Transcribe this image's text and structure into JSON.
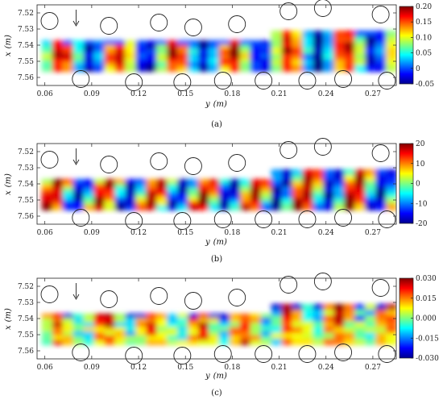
{
  "chart_data": [
    {
      "type": "heatmap",
      "panel_label": "(a)",
      "xlabel": "y",
      "xlabel_unit": "(m)",
      "ylabel": "x",
      "ylabel_unit": "(m)",
      "xlim": [
        0.055,
        0.285
      ],
      "ylim": [
        7.515,
        7.565
      ],
      "x_ticks": [
        "0.06",
        "0.09",
        "0.12",
        "0.15",
        "0.18",
        "0.21",
        "0.24",
        "0.27"
      ],
      "x_tick_values": [
        0.06,
        0.09,
        0.12,
        0.15,
        0.18,
        0.21,
        0.24,
        0.27
      ],
      "y_ticks": [
        "7.52",
        "7.53",
        "7.54",
        "7.55",
        "7.56"
      ],
      "y_tick_values": [
        7.52,
        7.53,
        7.54,
        7.55,
        7.56
      ],
      "colorbar_ticks": [
        "0.20",
        "0.15",
        "0.10",
        "0.05",
        "0",
        "-0.05"
      ],
      "colorbar_values": [
        0.2,
        0.15,
        0.1,
        0.05,
        0,
        -0.05
      ],
      "colorscale": "jet",
      "flow_arrow_y": 0.08
    },
    {
      "type": "heatmap",
      "panel_label": "(b)",
      "xlabel": "y",
      "xlabel_unit": "(m)",
      "ylabel": "x",
      "ylabel_unit": "(m)",
      "xlim": [
        0.055,
        0.285
      ],
      "ylim": [
        7.515,
        7.565
      ],
      "x_ticks": [
        "0.06",
        "0.09",
        "0.12",
        "0.15",
        "0.18",
        "0.21",
        "0.24",
        "0.27"
      ],
      "x_tick_values": [
        0.06,
        0.09,
        0.12,
        0.15,
        0.18,
        0.21,
        0.24,
        0.27
      ],
      "y_ticks": [
        "7.52",
        "7.53",
        "7.54",
        "7.55",
        "7.56"
      ],
      "y_tick_values": [
        7.52,
        7.53,
        7.54,
        7.55,
        7.56
      ],
      "colorbar_ticks": [
        "20",
        "10",
        "0",
        "-10",
        "-20"
      ],
      "colorbar_values": [
        20,
        10,
        0,
        -10,
        -20
      ],
      "colorscale": "jet",
      "flow_arrow_y": 0.08
    },
    {
      "type": "heatmap",
      "panel_label": "(c)",
      "xlabel": "y",
      "xlabel_unit": "(m)",
      "ylabel": "x",
      "ylabel_unit": "(m)",
      "xlim": [
        0.055,
        0.285
      ],
      "ylim": [
        7.515,
        7.565
      ],
      "x_ticks": [
        "0.06",
        "0.09",
        "0.12",
        "0.15",
        "0.18",
        "0.21",
        "0.24",
        "0.27"
      ],
      "x_tick_values": [
        0.06,
        0.09,
        0.12,
        0.15,
        0.18,
        0.21,
        0.24,
        0.27
      ],
      "y_ticks": [
        "7.52",
        "7.53",
        "7.54",
        "7.55",
        "7.56"
      ],
      "y_tick_values": [
        7.52,
        7.53,
        7.54,
        7.55,
        7.56
      ],
      "colorbar_ticks": [
        "0.030",
        "0.015",
        "0.000",
        "-0.015",
        "-0.030"
      ],
      "colorbar_values": [
        0.03,
        0.015,
        0.0,
        -0.015,
        -0.03
      ],
      "colorscale": "jet",
      "flow_arrow_y": 0.08
    }
  ],
  "cylinders": [
    {
      "y": 0.063,
      "x": 7.525
    },
    {
      "y": 0.101,
      "x": 7.528
    },
    {
      "y": 0.133,
      "x": 7.526
    },
    {
      "y": 0.155,
      "x": 7.529
    },
    {
      "y": 0.183,
      "x": 7.527
    },
    {
      "y": 0.216,
      "x": 7.519
    },
    {
      "y": 0.238,
      "x": 7.517
    },
    {
      "y": 0.275,
      "x": 7.521
    },
    {
      "y": 0.083,
      "x": 7.561
    },
    {
      "y": 0.117,
      "x": 7.563
    },
    {
      "y": 0.148,
      "x": 7.563
    },
    {
      "y": 0.174,
      "x": 7.562
    },
    {
      "y": 0.2,
      "x": 7.562
    },
    {
      "y": 0.228,
      "x": 7.562
    },
    {
      "y": 0.251,
      "x": 7.561
    },
    {
      "y": 0.279,
      "x": 7.562
    }
  ]
}
